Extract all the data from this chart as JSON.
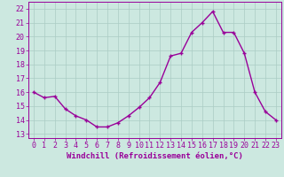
{
  "x": [
    0,
    1,
    2,
    3,
    4,
    5,
    6,
    7,
    8,
    9,
    10,
    11,
    12,
    13,
    14,
    15,
    16,
    17,
    18,
    19,
    20,
    21,
    22,
    23
  ],
  "y": [
    16.0,
    15.6,
    15.7,
    14.8,
    14.3,
    14.0,
    13.5,
    13.5,
    13.8,
    14.3,
    14.9,
    15.6,
    16.7,
    18.6,
    18.8,
    20.3,
    21.0,
    21.8,
    20.3,
    20.3,
    18.8,
    16.0,
    14.6,
    14.0
  ],
  "line_color": "#990099",
  "marker": "+",
  "marker_size": 3.5,
  "linewidth": 1.0,
  "xlabel": "Windchill (Refroidissement éolien,°C)",
  "xlabel_fontsize": 6.5,
  "xtick_labels": [
    "0",
    "1",
    "2",
    "3",
    "4",
    "5",
    "6",
    "7",
    "8",
    "9",
    "10",
    "11",
    "12",
    "13",
    "14",
    "15",
    "16",
    "17",
    "18",
    "19",
    "20",
    "21",
    "22",
    "23"
  ],
  "ytick_values": [
    13,
    14,
    15,
    16,
    17,
    18,
    19,
    20,
    21,
    22
  ],
  "ylim": [
    12.7,
    22.5
  ],
  "xlim": [
    -0.5,
    23.5
  ],
  "bg_color": "#cce8e0",
  "grid_color": "#aaccC4",
  "tick_fontsize": 6.0
}
